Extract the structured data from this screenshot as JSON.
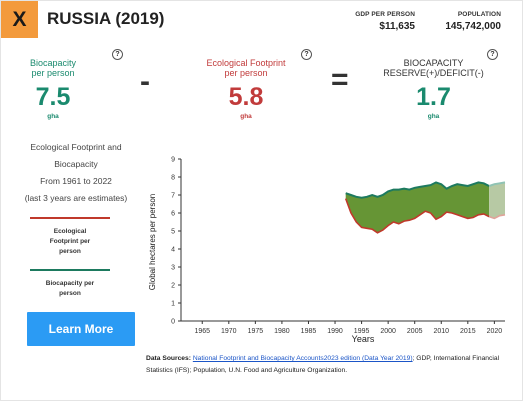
{
  "header": {
    "close_label": "X",
    "title": "RUSSIA (2019)",
    "gdp_label": "GDP PER PERSON",
    "gdp_value": "$11,635",
    "population_label": "POPULATION",
    "population_value": "145,742,000"
  },
  "metrics": {
    "biocapacity": {
      "label_line1": "Biocapacity",
      "label_line2": "per person",
      "value": "7.5",
      "unit": "gha"
    },
    "footprint": {
      "label_line1": "Ecological Footprint",
      "label_line2": "per person",
      "value": "5.8",
      "unit": "gha"
    },
    "reserve": {
      "label_line1": "BIOCAPACITY",
      "label_line2": "RESERVE(+)/DEFICIT(-)",
      "value": "1.7",
      "unit": "gha"
    },
    "minus_symbol": "-",
    "equals_symbol": "=",
    "help_symbol": "?"
  },
  "info": {
    "line1": "Ecological Footprint and",
    "line2": "Biocapacity",
    "line3": "From 1961 to 2022",
    "line4": "(last 3 years are estimates)"
  },
  "legend": {
    "footprint_line1": "Ecological",
    "footprint_line2": "Footprint per",
    "footprint_line3": "person",
    "biocapacity_line1": "Biocapacity per",
    "biocapacity_line2": "person"
  },
  "learn_more_label": "Learn More",
  "colors": {
    "footprint": "#c0392b",
    "biocapacity": "#1d7a5f",
    "reserve_fill": "#5e8f2a",
    "accent_orange": "#f39a3c",
    "button_blue": "#2b9bf4"
  },
  "sources": {
    "prefix": "Data Sources:",
    "link_text": "National Footprint and Biocapacity Accounts2023 edition (Data Year 2019)",
    "suffix": "; GDP, International Financial Statistics (IFS); Population, U.N. Food and Agriculture Organization."
  },
  "chart_data": {
    "type": "area",
    "xlabel": "Years",
    "ylabel": "Global hectares per person",
    "xlim": [
      1961,
      2022
    ],
    "ylim": [
      0,
      9
    ],
    "xticks": [
      1965,
      1970,
      1975,
      1980,
      1985,
      1990,
      1995,
      2000,
      2005,
      2010,
      2015,
      2020
    ],
    "yticks": [
      0,
      1,
      2,
      3,
      4,
      5,
      6,
      7,
      8,
      9
    ],
    "estimate_from": 2019,
    "series": [
      {
        "name": "Biocapacity per person",
        "x": [
          1992,
          1993,
          1994,
          1995,
          1996,
          1997,
          1998,
          1999,
          2000,
          2001,
          2002,
          2003,
          2004,
          2005,
          2006,
          2007,
          2008,
          2009,
          2010,
          2011,
          2012,
          2013,
          2014,
          2015,
          2016,
          2017,
          2018,
          2019,
          2020,
          2021,
          2022
        ],
        "values": [
          7.1,
          7.0,
          6.9,
          6.85,
          6.9,
          7.0,
          6.9,
          7.0,
          7.2,
          7.3,
          7.3,
          7.35,
          7.3,
          7.4,
          7.45,
          7.5,
          7.55,
          7.7,
          7.6,
          7.35,
          7.5,
          7.6,
          7.55,
          7.5,
          7.6,
          7.7,
          7.65,
          7.5,
          7.6,
          7.65,
          7.7
        ]
      },
      {
        "name": "Ecological Footprint per person",
        "x": [
          1992,
          1993,
          1994,
          1995,
          1996,
          1997,
          1998,
          1999,
          2000,
          2001,
          2002,
          2003,
          2004,
          2005,
          2006,
          2007,
          2008,
          2009,
          2010,
          2011,
          2012,
          2013,
          2014,
          2015,
          2016,
          2017,
          2018,
          2019,
          2020,
          2021,
          2022
        ],
        "values": [
          6.8,
          6.0,
          5.5,
          5.2,
          5.15,
          5.1,
          4.9,
          5.05,
          5.3,
          5.5,
          5.4,
          5.55,
          5.6,
          5.7,
          5.9,
          6.1,
          6.0,
          5.65,
          5.8,
          6.05,
          6.0,
          5.9,
          5.8,
          5.7,
          5.75,
          5.9,
          5.95,
          5.8,
          5.7,
          5.85,
          5.9
        ]
      }
    ]
  }
}
